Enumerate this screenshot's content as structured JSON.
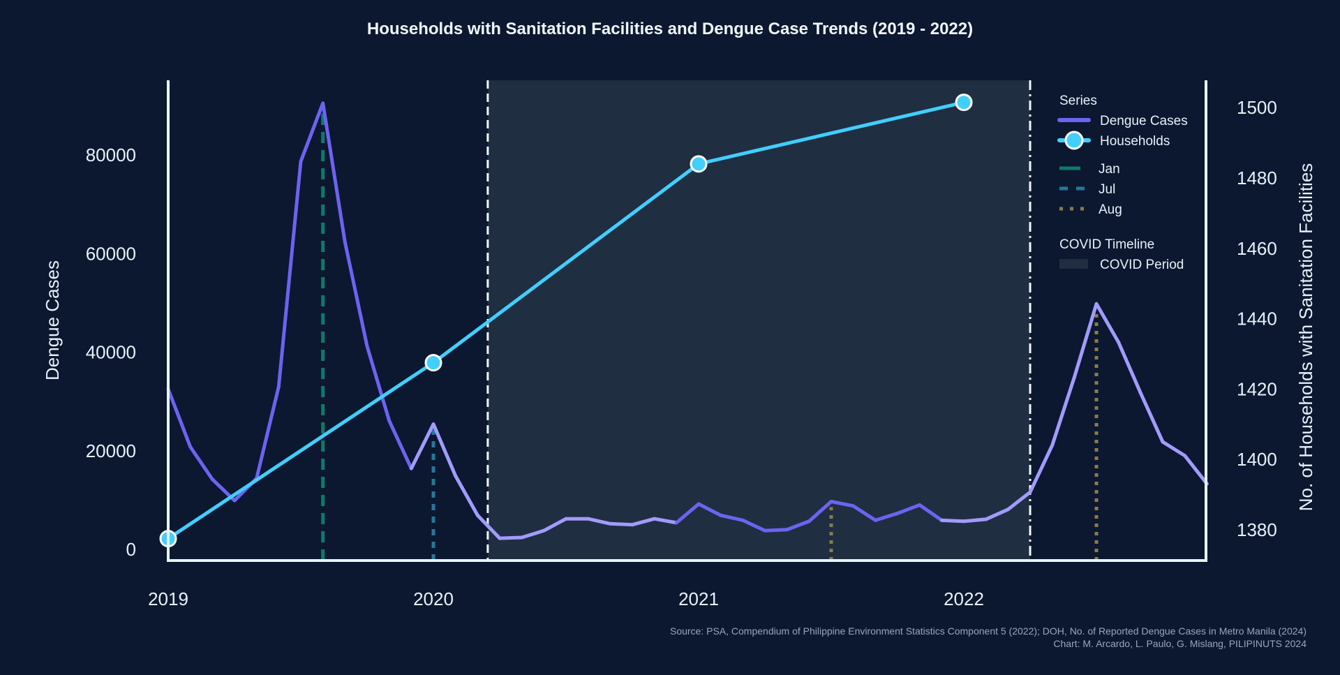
{
  "chart_data": {
    "type": "line",
    "title": "Households with Sanitation Facilities and Dengue Case Trends (2019 - 2022)",
    "ylabel": "Dengue Cases",
    "y2label": "No. of Households with Sanitation Facilities",
    "xticks": [
      "2019",
      "2020",
      "2021",
      "2022"
    ],
    "yticks": [
      0,
      20000,
      40000,
      60000,
      80000
    ],
    "y2ticks": [
      1380,
      1400,
      1420,
      1440,
      1460,
      1480,
      1500
    ],
    "ylim": [
      0,
      96000
    ],
    "y2lim": [
      1370,
      1506
    ],
    "grid": false,
    "legend_position": "top-right",
    "series": [
      {
        "name": "Dengue Cases",
        "color": "#6c63f0",
        "alt_year_color": "#a29bfe",
        "x": [
          "2019-01",
          "2019-02",
          "2019-03",
          "2019-04",
          "2019-05",
          "2019-06",
          "2019-07",
          "2019-08",
          "2019-09",
          "2019-10",
          "2019-11",
          "2019-12",
          "2020-01",
          "2020-02",
          "2020-03",
          "2020-04",
          "2020-05",
          "2020-06",
          "2020-07",
          "2020-08",
          "2020-09",
          "2020-10",
          "2020-11",
          "2020-12",
          "2021-01",
          "2021-02",
          "2021-03",
          "2021-04",
          "2021-05",
          "2021-06",
          "2021-07",
          "2021-08",
          "2021-09",
          "2021-10",
          "2021-11",
          "2021-12",
          "2022-01",
          "2022-02",
          "2022-03",
          "2022-04",
          "2022-05",
          "2022-06",
          "2022-07",
          "2022-08",
          "2022-09",
          "2022-10",
          "2022-11",
          "2022-12"
        ],
        "values": [
          32500,
          20800,
          14200,
          9900,
          14400,
          33000,
          78700,
          90500,
          62300,
          41200,
          26100,
          16400,
          25400,
          14900,
          6900,
          2250,
          2400,
          3800,
          6200,
          6200,
          5200,
          5000,
          6200,
          5400,
          9200,
          6900,
          5900,
          3800,
          4000,
          5700,
          9700,
          8800,
          5900,
          7300,
          9000,
          5900,
          5700,
          6100,
          8100,
          11600,
          21100,
          34900,
          49800,
          42000,
          31700,
          21800,
          19000,
          13300
        ]
      },
      {
        "name": "Households",
        "color": "#40cfff",
        "axis": "right",
        "x": [
          "2019-01",
          "2020-01",
          "2021-01",
          "2022-01"
        ],
        "values": [
          1377.5,
          1427.5,
          1484,
          1501.5
        ]
      }
    ],
    "reference_lines": [
      {
        "name": "Jan",
        "color": "#0f7a6a",
        "style": "dashed",
        "x": [
          "2019-08"
        ]
      },
      {
        "name": "Jul",
        "color": "#21799c",
        "style": "dashed-short",
        "x": [
          "2020-01"
        ]
      },
      {
        "name": "Aug",
        "color": "#8c7a4f",
        "style": "dotted",
        "x": [
          "2021-07",
          "2022-07"
        ]
      }
    ],
    "covid_period": {
      "start": "2020-03-15",
      "end": "2022-04-01",
      "color": "#202e42"
    },
    "legend": {
      "series_title": "Series",
      "timeline_title": "COVID Timeline",
      "covid_label": "COVID Period"
    }
  },
  "source": {
    "line1": "Source: PSA, Compendium of Philippine Environment Statistics Component 5 (2022); DOH, No. of Reported Dengue Cases in Metro Manila (2024)",
    "line2": "Chart: M. Arcardo, L. Paulo, G. Mislang, PILIPINUTS 2024"
  }
}
